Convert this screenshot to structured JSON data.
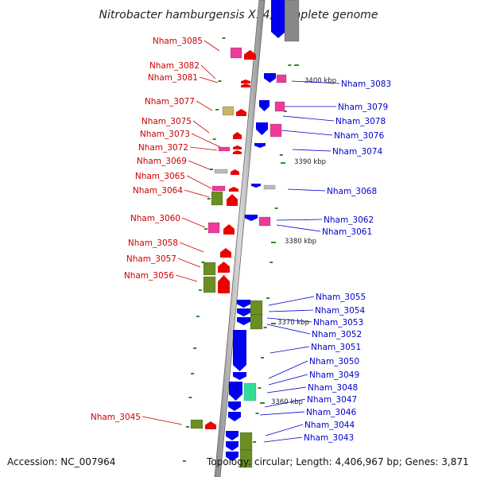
{
  "map": {
    "title": "Nitrobacter hamburgensis X14, complete genome",
    "footer_left": "Accession: NC_007964",
    "footer_right": "Topology: circular; Length: 4,406,967 bp; Genes: 3,871",
    "left_label_color": "#cc0000",
    "right_label_color": "#0000cc",
    "tick_color": "#2e8b2e"
  },
  "position_markers": [
    "3400 kbp",
    "3390 kbp",
    "3380 kbp",
    "3370 kbp",
    "3360 kbp"
  ],
  "genes_left": [
    "Nham_3085",
    "Nham_3082",
    "Nham_3081",
    "Nham_3077",
    "Nham_3075",
    "Nham_3073",
    "Nham_3072",
    "Nham_3069",
    "Nham_3065",
    "Nham_3064",
    "Nham_3060",
    "Nham_3058",
    "Nham_3057",
    "Nham_3056",
    "Nham_3045"
  ],
  "genes_right": [
    "Nham_3083",
    "Nham_3079",
    "Nham_3078",
    "Nham_3076",
    "Nham_3074",
    "Nham_3068",
    "Nham_3062",
    "Nham_3061",
    "Nham_3055",
    "Nham_3054",
    "Nham_3053",
    "Nham_3052",
    "Nham_3051",
    "Nham_3050",
    "Nham_3049",
    "Nham_3048",
    "Nham_3047",
    "Nham_3046",
    "Nham_3044",
    "Nham_3043"
  ],
  "feature_colors": {
    "forward_gene": "#ee0000",
    "reverse_gene": "#0000ee",
    "pink_feature": "#ee3b9a",
    "olive_feature": "#6b8e23",
    "tan_feature": "#c8b46a",
    "gray_feature": "#bbbbbb",
    "teal_feature": "#33dd99"
  }
}
